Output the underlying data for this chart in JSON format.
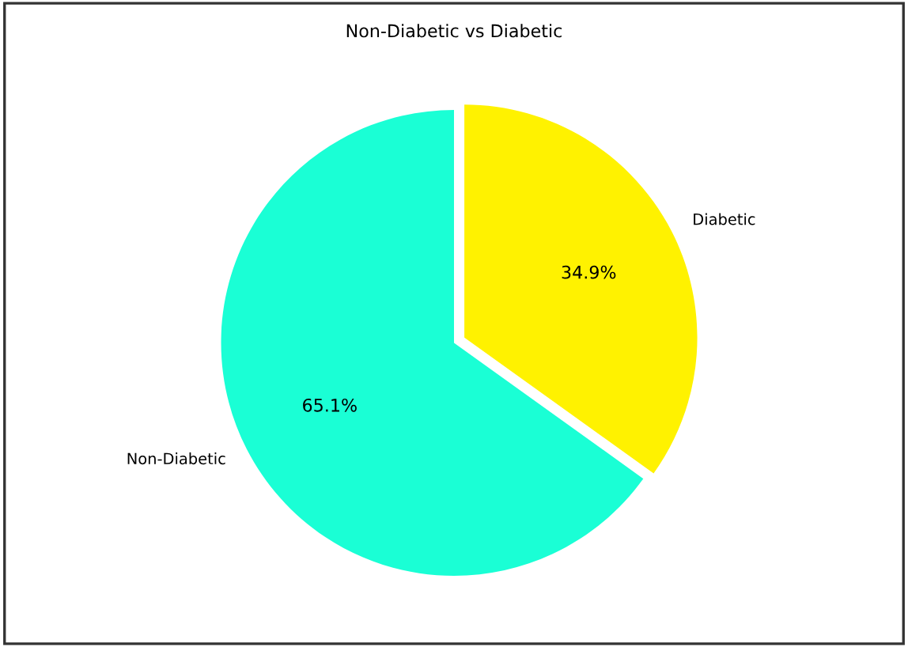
{
  "chart_data": {
    "type": "pie",
    "title": "Non-Diabetic vs Diabetic",
    "categories": [
      "Non-Diabetic",
      "Diabetic"
    ],
    "values": [
      65.1,
      34.9
    ],
    "value_labels": [
      "65.1%",
      "34.9%"
    ],
    "colors": [
      "#1affd5",
      "#fff200"
    ]
  }
}
